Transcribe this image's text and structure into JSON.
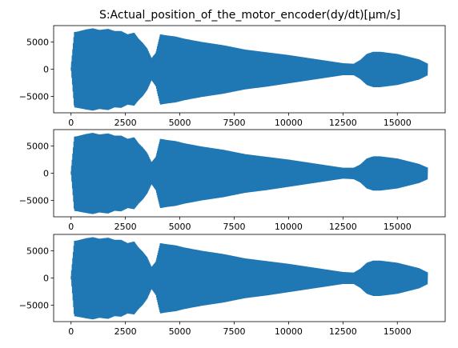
{
  "chart_data": [
    {
      "type": "line",
      "title": "S:Actual_position_of_the_motor_encoder(dy/dt)[µm/s]",
      "xlabel": "",
      "ylabel": "",
      "xlim": [
        -800,
        17200
      ],
      "ylim": [
        -8000,
        8000
      ],
      "x_ticks": [
        0,
        2500,
        5000,
        7500,
        10000,
        12500,
        15000
      ],
      "x_tick_labels": [
        "0",
        "2500",
        "5000",
        "7500",
        "10000",
        "12500",
        "15000"
      ],
      "y_ticks": [
        5000,
        0,
        -5000
      ],
      "y_tick_labels": [
        "5000",
        "0",
        "−5000"
      ],
      "grid": false,
      "color": "#1f77b4",
      "envelope": {
        "x": [
          0,
          150,
          300,
          700,
          1000,
          1300,
          1700,
          2000,
          2300,
          2600,
          2900,
          3100,
          3300,
          3500,
          3700,
          3900,
          4100,
          4400,
          4800,
          5200,
          6000,
          7000,
          8000,
          9000,
          10000,
          11000,
          12000,
          12500,
          13000,
          13300,
          13600,
          13900,
          14200,
          14600,
          15000,
          15500,
          16000,
          16400
        ],
        "upper": [
          300,
          6800,
          6900,
          7300,
          7500,
          7200,
          7400,
          7000,
          7000,
          6400,
          6700,
          5600,
          4800,
          3800,
          2000,
          3000,
          6400,
          6200,
          6000,
          5600,
          5000,
          4400,
          3600,
          3100,
          2600,
          2000,
          1400,
          1100,
          1000,
          1700,
          2800,
          3200,
          3200,
          3000,
          2800,
          2300,
          1800,
          1000
        ],
        "lower": [
          300,
          -7000,
          -7100,
          -7400,
          -7600,
          -7300,
          -7500,
          -7000,
          -7100,
          -6500,
          -6700,
          -5700,
          -4900,
          -3800,
          -2000,
          -3100,
          -6500,
          -6300,
          -6100,
          -5700,
          -5100,
          -4500,
          -3700,
          -3200,
          -2600,
          -2000,
          -1400,
          -1100,
          -1100,
          -1800,
          -2900,
          -3300,
          -3300,
          -3100,
          -2900,
          -2400,
          -1900,
          -1100
        ]
      }
    },
    {
      "type": "line",
      "title": "",
      "xlabel": "",
      "ylabel": "",
      "xlim": [
        -800,
        17200
      ],
      "ylim": [
        -8000,
        8000
      ],
      "x_ticks": [
        0,
        2500,
        5000,
        7500,
        10000,
        12500,
        15000
      ],
      "x_tick_labels": [
        "0",
        "2500",
        "5000",
        "7500",
        "10000",
        "12500",
        "15000"
      ],
      "y_ticks": [
        5000,
        0,
        -5000
      ],
      "y_tick_labels": [
        "5000",
        "0",
        "−5000"
      ],
      "grid": false,
      "color": "#1f77b4",
      "envelope": {
        "x": [
          0,
          150,
          300,
          700,
          1000,
          1300,
          1700,
          2000,
          2300,
          2600,
          2900,
          3100,
          3300,
          3500,
          3700,
          3900,
          4100,
          4400,
          4800,
          5200,
          6000,
          7000,
          8000,
          9000,
          10000,
          11000,
          12000,
          12500,
          13000,
          13300,
          13600,
          13900,
          14200,
          14600,
          15000,
          15500,
          16000,
          16400
        ],
        "upper": [
          300,
          6700,
          6800,
          7200,
          7400,
          7100,
          7300,
          6900,
          6900,
          6300,
          6600,
          5500,
          4700,
          3700,
          2000,
          3000,
          6300,
          6100,
          5900,
          5500,
          4900,
          4300,
          3500,
          3000,
          2500,
          1900,
          1300,
          1000,
          1000,
          1600,
          2700,
          3100,
          3100,
          2900,
          2700,
          2200,
          1700,
          1000
        ],
        "lower": [
          300,
          -6900,
          -7000,
          -7300,
          -7500,
          -7200,
          -7400,
          -6900,
          -7000,
          -6400,
          -6600,
          -5600,
          -4800,
          -3700,
          -2000,
          -3100,
          -6400,
          -6200,
          -6000,
          -5600,
          -5000,
          -4400,
          -3600,
          -3100,
          -2500,
          -1900,
          -1300,
          -1000,
          -1100,
          -1700,
          -2800,
          -3200,
          -3200,
          -3000,
          -2800,
          -2300,
          -1800,
          -1100
        ]
      }
    },
    {
      "type": "line",
      "title": "",
      "xlabel": "",
      "ylabel": "",
      "xlim": [
        -800,
        17200
      ],
      "ylim": [
        -8000,
        8000
      ],
      "x_ticks": [
        0,
        2500,
        5000,
        7500,
        10000,
        12500,
        15000
      ],
      "x_tick_labels": [
        "0",
        "2500",
        "5000",
        "7500",
        "10000",
        "12500",
        "15000"
      ],
      "y_ticks": [
        5000,
        0,
        -5000
      ],
      "y_tick_labels": [
        "5000",
        "0",
        "−5000"
      ],
      "grid": false,
      "color": "#1f77b4",
      "envelope": {
        "x": [
          0,
          150,
          300,
          700,
          1000,
          1300,
          1700,
          2000,
          2300,
          2600,
          2900,
          3100,
          3300,
          3500,
          3700,
          3900,
          4100,
          4400,
          4800,
          5200,
          6000,
          7000,
          8000,
          9000,
          10000,
          11000,
          12000,
          12500,
          13000,
          13300,
          13600,
          13900,
          14200,
          14600,
          15000,
          15500,
          16000,
          16400
        ],
        "upper": [
          300,
          6800,
          6900,
          7300,
          7500,
          7200,
          7400,
          7000,
          7000,
          6400,
          6700,
          5600,
          4800,
          3800,
          2000,
          3000,
          6400,
          6200,
          6000,
          5600,
          5000,
          4400,
          3600,
          3100,
          2600,
          2000,
          1400,
          1100,
          1000,
          1700,
          2800,
          3200,
          3200,
          3000,
          2800,
          2300,
          1800,
          1000
        ],
        "lower": [
          300,
          -7000,
          -7100,
          -7400,
          -7600,
          -7300,
          -7500,
          -7000,
          -7100,
          -6500,
          -6700,
          -5700,
          -4900,
          -3800,
          -2000,
          -3100,
          -6500,
          -6300,
          -6100,
          -5700,
          -5100,
          -4500,
          -3700,
          -3200,
          -2600,
          -2000,
          -1400,
          -1100,
          -1100,
          -1800,
          -2900,
          -3300,
          -3300,
          -3100,
          -2900,
          -2400,
          -1900,
          -1100
        ]
      }
    }
  ]
}
